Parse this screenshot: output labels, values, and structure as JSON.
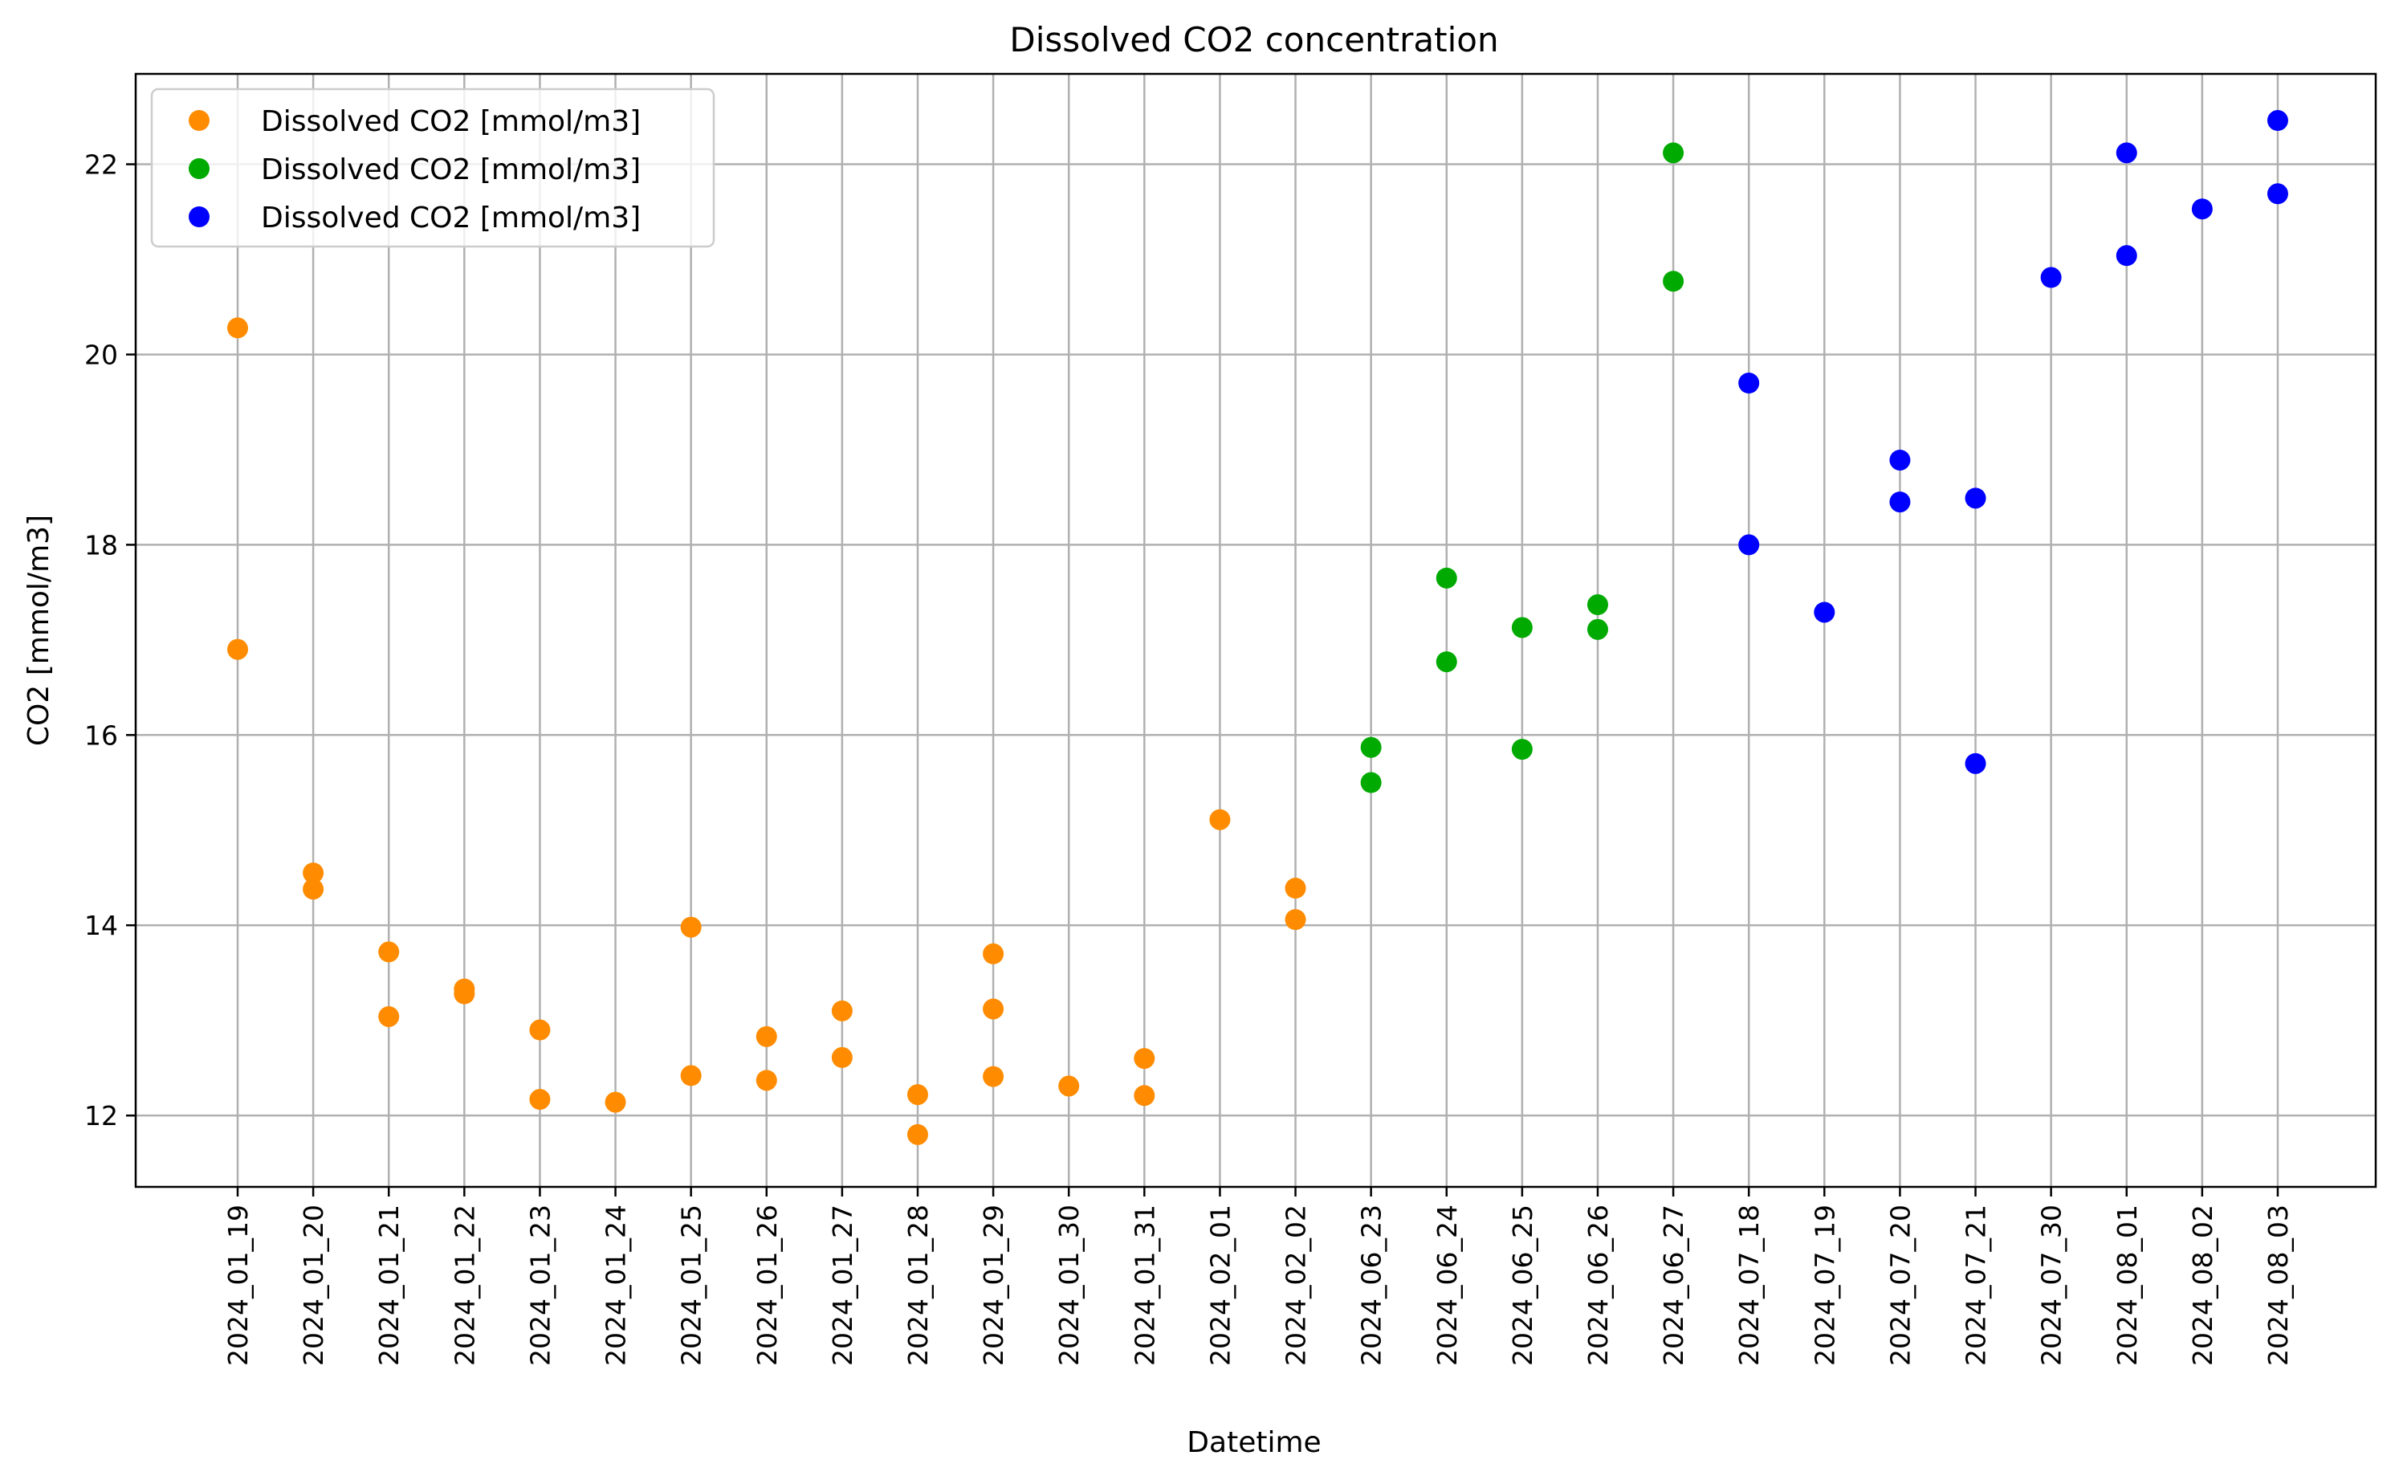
{
  "chart_data": {
    "type": "scatter",
    "title": "Dissolved CO2 concentration",
    "xlabel": "Datetime",
    "ylabel": "CO2 [mmol/m3]",
    "ylim": [
      11.25,
      22.95
    ],
    "yticks": [
      12,
      14,
      16,
      18,
      20,
      22
    ],
    "grid": true,
    "legend_position": "top-left",
    "categories": [
      "2024_01_19",
      "2024_01_20",
      "2024_01_21",
      "2024_01_22",
      "2024_01_23",
      "2024_01_24",
      "2024_01_25",
      "2024_01_26",
      "2024_01_27",
      "2024_01_28",
      "2024_01_29",
      "2024_01_30",
      "2024_01_31",
      "2024_02_01",
      "2024_02_02",
      "2024_06_23",
      "2024_06_24",
      "2024_06_25",
      "2024_06_26",
      "2024_06_27",
      "2024_07_18",
      "2024_07_19",
      "2024_07_20",
      "2024_07_21",
      "2024_07_30",
      "2024_08_01",
      "2024_08_02",
      "2024_08_03"
    ],
    "series": [
      {
        "name": "Dissolved CO2 [mmol/m3]",
        "color": "#ff8c00",
        "points": [
          [
            "2024_01_19",
            20.28
          ],
          [
            "2024_01_19",
            16.9
          ],
          [
            "2024_01_20",
            14.55
          ],
          [
            "2024_01_20",
            14.38
          ],
          [
            "2024_01_21",
            13.72
          ],
          [
            "2024_01_21",
            13.04
          ],
          [
            "2024_01_22",
            13.33
          ],
          [
            "2024_01_22",
            13.28
          ],
          [
            "2024_01_23",
            12.9
          ],
          [
            "2024_01_23",
            12.17
          ],
          [
            "2024_01_24",
            12.14
          ],
          [
            "2024_01_25",
            13.98
          ],
          [
            "2024_01_25",
            12.42
          ],
          [
            "2024_01_26",
            12.83
          ],
          [
            "2024_01_26",
            12.37
          ],
          [
            "2024_01_27",
            13.1
          ],
          [
            "2024_01_27",
            12.61
          ],
          [
            "2024_01_28",
            12.22
          ],
          [
            "2024_01_28",
            11.8
          ],
          [
            "2024_01_29",
            13.7
          ],
          [
            "2024_01_29",
            13.12
          ],
          [
            "2024_01_29",
            12.41
          ],
          [
            "2024_01_30",
            12.31
          ],
          [
            "2024_01_31",
            12.6
          ],
          [
            "2024_01_31",
            12.21
          ],
          [
            "2024_02_01",
            15.11
          ],
          [
            "2024_02_02",
            14.39
          ],
          [
            "2024_02_02",
            14.06
          ]
        ]
      },
      {
        "name": "Dissolved CO2 [mmol/m3]",
        "color": "#00aa00",
        "points": [
          [
            "2024_06_23",
            15.87
          ],
          [
            "2024_06_23",
            15.5
          ],
          [
            "2024_06_24",
            17.65
          ],
          [
            "2024_06_24",
            16.77
          ],
          [
            "2024_06_25",
            17.13
          ],
          [
            "2024_06_25",
            15.85
          ],
          [
            "2024_06_26",
            17.37
          ],
          [
            "2024_06_26",
            17.11
          ],
          [
            "2024_06_27",
            22.12
          ],
          [
            "2024_06_27",
            20.77
          ]
        ]
      },
      {
        "name": "Dissolved CO2 [mmol/m3]",
        "color": "#0000ff",
        "points": [
          [
            "2024_07_18",
            19.7
          ],
          [
            "2024_07_18",
            18.0
          ],
          [
            "2024_07_19",
            17.29
          ],
          [
            "2024_07_20",
            18.89
          ],
          [
            "2024_07_20",
            18.45
          ],
          [
            "2024_07_21",
            18.49
          ],
          [
            "2024_07_21",
            15.7
          ],
          [
            "2024_07_30",
            20.81
          ],
          [
            "2024_08_01",
            22.12
          ],
          [
            "2024_08_01",
            21.04
          ],
          [
            "2024_08_02",
            21.53
          ],
          [
            "2024_08_03",
            22.46
          ],
          [
            "2024_08_03",
            21.69
          ]
        ]
      }
    ]
  }
}
